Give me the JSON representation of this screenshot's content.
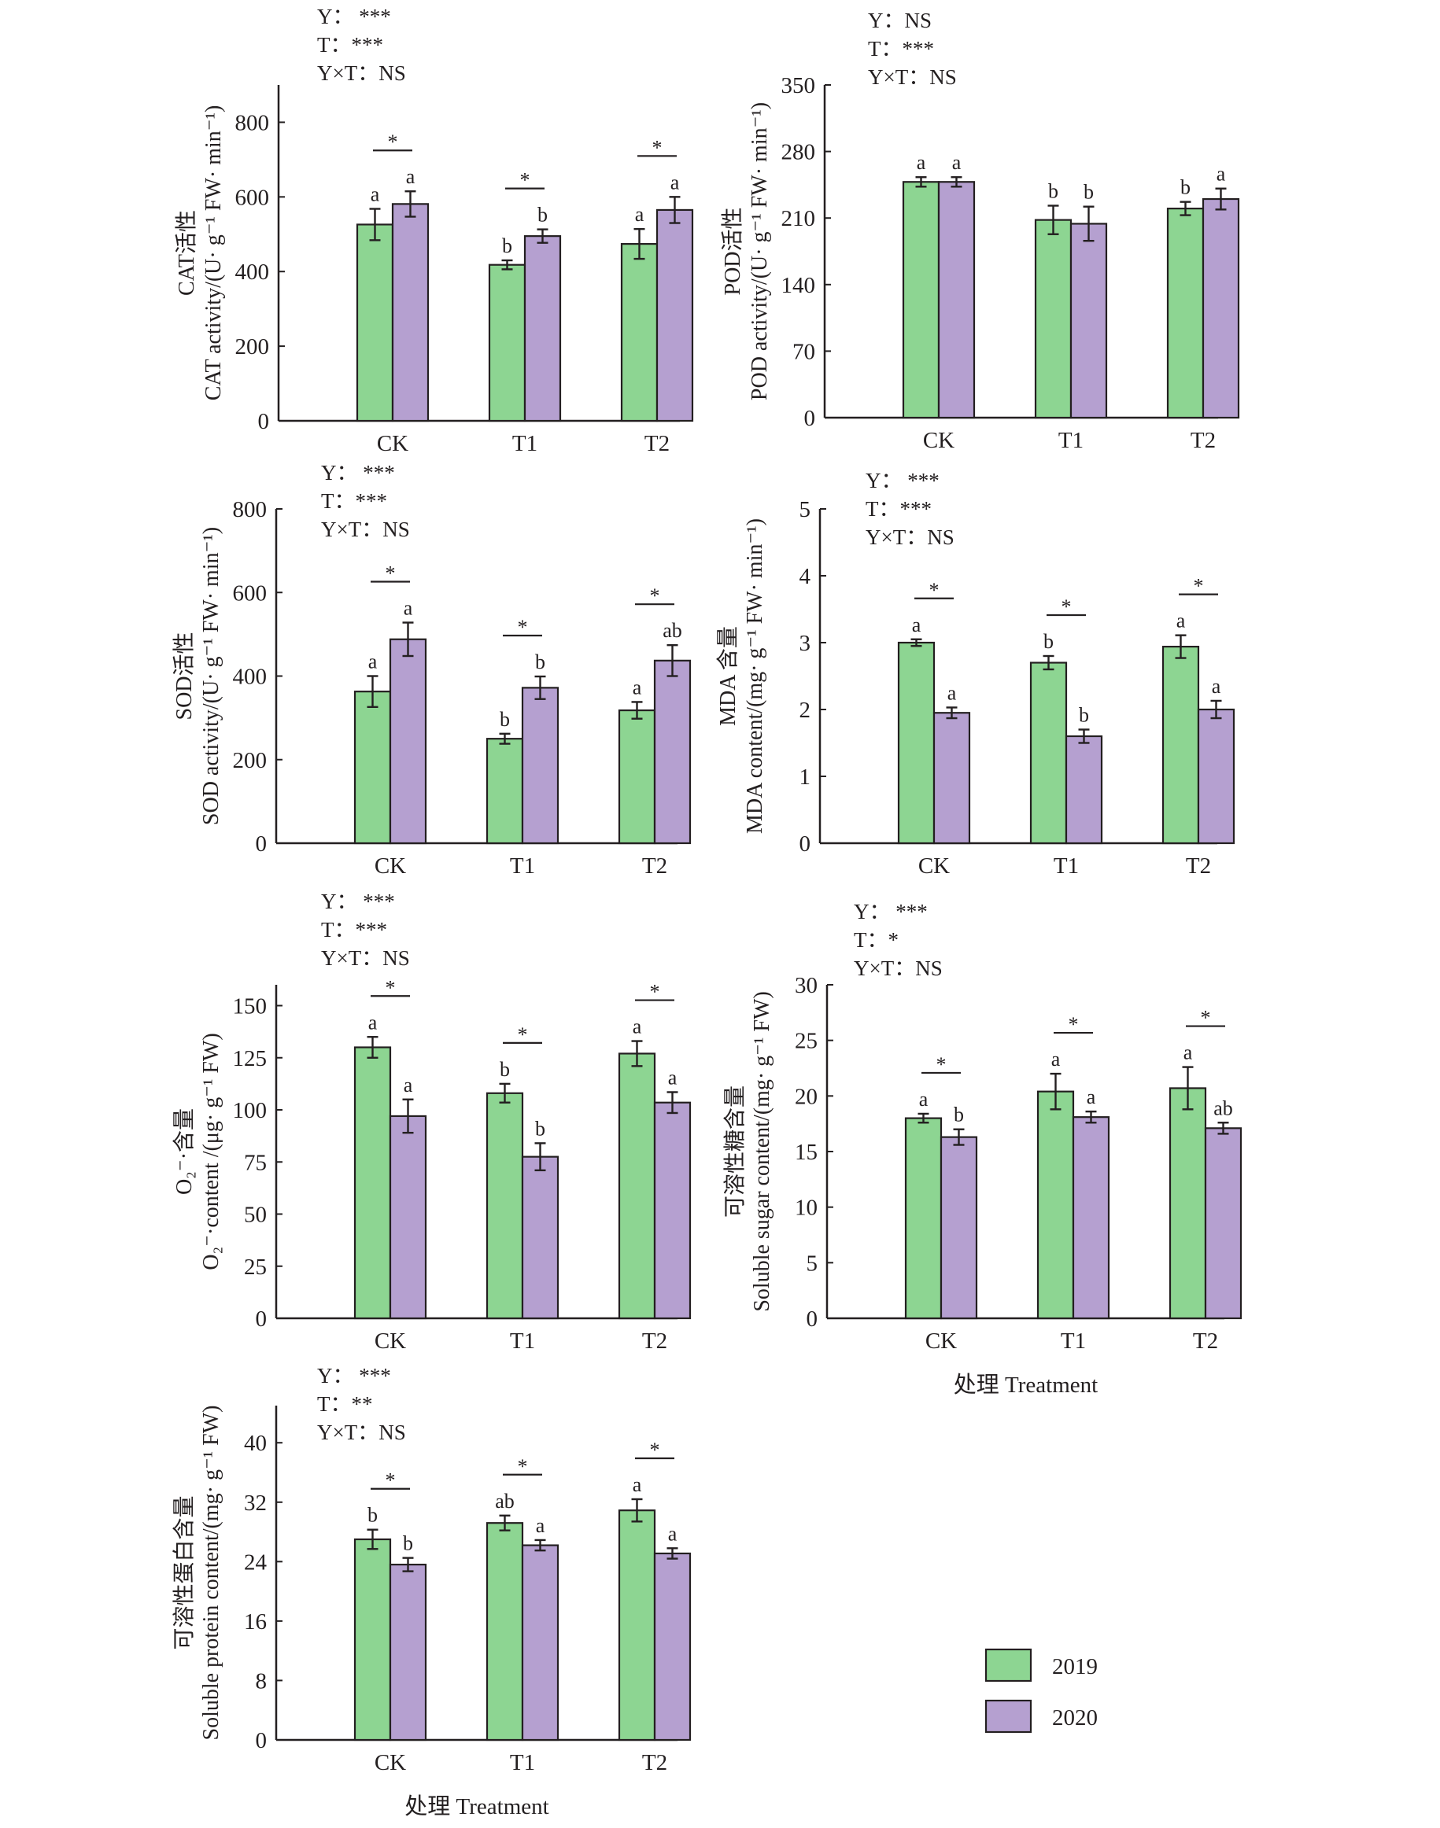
{
  "colors": {
    "series_2019": "#8dd592",
    "series_2020": "#b5a0d0",
    "stroke": "#231f20"
  },
  "legend": {
    "items": [
      {
        "label": "2019",
        "color": "#8dd592"
      },
      {
        "label": "2020",
        "color": "#b5a0d0"
      }
    ]
  },
  "xlabel": "处理  Treatment",
  "chart_data": [
    {
      "id": "cat",
      "type": "bar",
      "ylabel_cn": "CAT活性",
      "ylabel_en": "CAT activity/(U· g⁻¹ FW· min⁻¹)",
      "categories": [
        "CK",
        "T1",
        "T2"
      ],
      "ylim": [
        0,
        900
      ],
      "yticks": [
        0,
        200,
        400,
        600,
        800
      ],
      "stats": [
        "Y：  ***",
        "T：***",
        "Y×T：NS"
      ],
      "series": [
        {
          "name": "2019",
          "values": [
            526,
            418,
            474
          ],
          "errors": [
            42,
            12,
            40
          ],
          "letters": [
            "a",
            "b",
            "a"
          ]
        },
        {
          "name": "2020",
          "values": [
            581,
            495,
            565
          ],
          "errors": [
            34,
            18,
            35
          ],
          "letters": [
            "a",
            "b",
            "a"
          ]
        }
      ],
      "pair_significance": [
        "*",
        "*",
        "*"
      ],
      "show_xlabel": false
    },
    {
      "id": "pod",
      "type": "bar",
      "ylabel_cn": "POD活性",
      "ylabel_en": "POD activity/(U· g⁻¹ FW· min⁻¹)",
      "categories": [
        "CK",
        "T1",
        "T2"
      ],
      "ylim": [
        0,
        350
      ],
      "yticks": [
        0,
        70,
        140,
        210,
        280,
        350
      ],
      "stats": [
        "Y：NS",
        "T：***",
        "Y×T：NS"
      ],
      "series": [
        {
          "name": "2019",
          "values": [
            248,
            208,
            220
          ],
          "errors": [
            5,
            15,
            7
          ],
          "letters": [
            "a",
            "b",
            "b"
          ]
        },
        {
          "name": "2020",
          "values": [
            248,
            204,
            230
          ],
          "errors": [
            5,
            18,
            11
          ],
          "letters": [
            "a",
            "b",
            "a"
          ]
        }
      ],
      "pair_significance": [
        "",
        "",
        ""
      ],
      "show_xlabel": false
    },
    {
      "id": "sod",
      "type": "bar",
      "ylabel_cn": "SOD活性",
      "ylabel_en": "SOD activity/(U· g⁻¹ FW· min⁻¹)",
      "categories": [
        "CK",
        "T1",
        "T2"
      ],
      "ylim": [
        0,
        800
      ],
      "yticks": [
        0,
        200,
        400,
        600,
        800
      ],
      "stats": [
        "Y：  ***",
        "T：***",
        "Y×T：NS"
      ],
      "series": [
        {
          "name": "2019",
          "values": [
            363,
            250,
            318
          ],
          "errors": [
            37,
            12,
            20
          ],
          "letters": [
            "a",
            "b",
            "a"
          ]
        },
        {
          "name": "2020",
          "values": [
            488,
            372,
            437
          ],
          "errors": [
            40,
            27,
            37
          ],
          "letters": [
            "a",
            "b",
            "ab"
          ]
        }
      ],
      "pair_significance": [
        "*",
        "*",
        "*"
      ],
      "show_xlabel": false
    },
    {
      "id": "mda",
      "type": "bar",
      "ylabel_cn": "MDA  含量",
      "ylabel_en": "MDA content/(mg· g⁻¹ FW· min⁻¹)",
      "categories": [
        "CK",
        "T1",
        "T2"
      ],
      "ylim": [
        0,
        5
      ],
      "yticks": [
        0,
        1,
        2,
        3,
        4,
        5
      ],
      "stats": [
        "Y：  ***",
        "T：***",
        "Y×T：NS"
      ],
      "series": [
        {
          "name": "2019",
          "values": [
            3.0,
            2.7,
            2.94
          ],
          "errors": [
            0.05,
            0.1,
            0.17
          ],
          "letters": [
            "a",
            "b",
            "a"
          ]
        },
        {
          "name": "2020",
          "values": [
            1.95,
            1.6,
            2.0
          ],
          "errors": [
            0.08,
            0.1,
            0.13
          ],
          "letters": [
            "a",
            "b",
            "a"
          ]
        }
      ],
      "pair_significance": [
        "*",
        "*",
        "*"
      ],
      "show_xlabel": false
    },
    {
      "id": "o2",
      "type": "bar",
      "ylabel_cn": "O₂⁻·含量",
      "ylabel_en": "O₂⁻·content /(μg· g⁻¹ FW)",
      "categories": [
        "CK",
        "T1",
        "T2"
      ],
      "ylim": [
        0,
        160
      ],
      "yticks": [
        0,
        25,
        50,
        75,
        100,
        125,
        150
      ],
      "stats": [
        "Y：  ***",
        "T：***",
        "Y×T：NS"
      ],
      "series": [
        {
          "name": "2019",
          "values": [
            130,
            108,
            127
          ],
          "errors": [
            5,
            4.5,
            6
          ],
          "letters": [
            "a",
            "b",
            "a"
          ]
        },
        {
          "name": "2020",
          "values": [
            97,
            77.5,
            103.5
          ],
          "errors": [
            8,
            6.5,
            5
          ],
          "letters": [
            "a",
            "b",
            "a"
          ]
        }
      ],
      "pair_significance": [
        "*",
        "*",
        "*"
      ],
      "show_xlabel": false
    },
    {
      "id": "sugar",
      "type": "bar",
      "ylabel_cn": "可溶性糖含量",
      "ylabel_en": "Soluble sugar content/(mg· g⁻¹ FW)",
      "categories": [
        "CK",
        "T1",
        "T2"
      ],
      "ylim": [
        0,
        30
      ],
      "yticks": [
        0,
        5,
        10,
        15,
        20,
        25,
        30
      ],
      "stats": [
        "Y：  ***",
        "T：*",
        "Y×T：NS"
      ],
      "series": [
        {
          "name": "2019",
          "values": [
            18.0,
            20.4,
            20.7
          ],
          "errors": [
            0.4,
            1.6,
            1.9
          ],
          "letters": [
            "a",
            "a",
            "a"
          ]
        },
        {
          "name": "2020",
          "values": [
            16.3,
            18.1,
            17.1
          ],
          "errors": [
            0.7,
            0.5,
            0.5
          ],
          "letters": [
            "b",
            "a",
            "ab"
          ]
        }
      ],
      "pair_significance": [
        "*",
        "*",
        "*"
      ],
      "show_xlabel": true
    },
    {
      "id": "protein",
      "type": "bar",
      "ylabel_cn": "可溶性蛋白含量",
      "ylabel_en": "Soluble protein content/(mg· g⁻¹ FW)",
      "categories": [
        "CK",
        "T1",
        "T2"
      ],
      "ylim": [
        0,
        45
      ],
      "yticks": [
        0,
        8,
        16,
        24,
        32,
        40
      ],
      "stats": [
        "Y：  ***",
        "T：**",
        "Y×T：NS"
      ],
      "series": [
        {
          "name": "2019",
          "values": [
            27.0,
            29.2,
            30.9
          ],
          "errors": [
            1.3,
            1.0,
            1.5
          ],
          "letters": [
            "b",
            "ab",
            "a"
          ]
        },
        {
          "name": "2020",
          "values": [
            23.6,
            26.2,
            25.1
          ],
          "errors": [
            0.9,
            0.7,
            0.7
          ],
          "letters": [
            "b",
            "a",
            "a"
          ]
        }
      ],
      "pair_significance": [
        "*",
        "*",
        "*"
      ],
      "show_xlabel": true
    }
  ]
}
